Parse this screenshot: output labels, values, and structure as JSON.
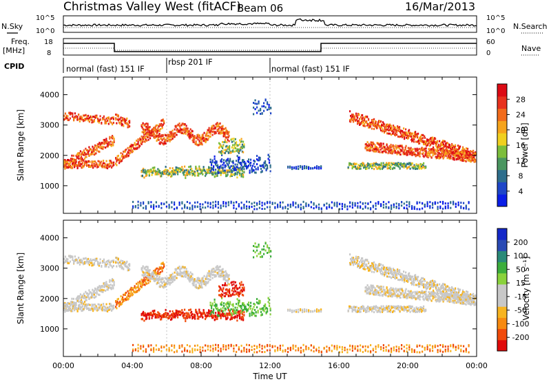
{
  "header": {
    "title": "Christmas Valley West (fitACF)",
    "beam": "Beam 06",
    "date": "16/Mar/2013"
  },
  "top_panels": {
    "nsky_label": "N.Sky",
    "nsky_ticks": [
      "10^5",
      "10^0"
    ],
    "nsky_right_ticks": [
      "10^5",
      "10^0"
    ],
    "nsearch_label": "N.Search",
    "freq_label_line1": "Freq.",
    "freq_label_line2": "[MHz]",
    "freq_ticks": [
      "18",
      "8"
    ],
    "nave_ticks": [
      "60",
      "0"
    ],
    "nave_label": "Nave",
    "cpid_label": "CPID",
    "cpid_segments": [
      {
        "label": "normal (fast) 151 IF",
        "start_hour": 0,
        "end_hour": 6
      },
      {
        "label": "rbsp 201 IF",
        "start_hour": 6,
        "end_hour": 12
      },
      {
        "label": "normal (fast) 151 IF",
        "start_hour": 12,
        "end_hour": 24
      }
    ]
  },
  "chart_data": [
    {
      "type": "heatmap",
      "name": "Power",
      "ylabel": "Slant Range [km]",
      "yticks": [
        1000,
        2000,
        3000,
        4000
      ],
      "ylim": [
        90,
        4580
      ],
      "xlim": [
        0,
        24
      ],
      "colorbar_label": "Power [dB]",
      "colorbar_ticks": [
        "4",
        "8",
        "12",
        "16",
        "20",
        "24",
        "28"
      ],
      "colorbar_colors": [
        "#0a1ee6",
        "#1e46c8",
        "#2e6e8c",
        "#4a9660",
        "#7cbe3c",
        "#f0d020",
        "#f6a41c",
        "#f26c1c",
        "#e8321e",
        "#dc0a14"
      ]
    },
    {
      "type": "heatmap",
      "name": "Velocity",
      "ylabel": "Slant Range [km]",
      "yticks": [
        1000,
        2000,
        3000,
        4000
      ],
      "ylim": [
        90,
        4580
      ],
      "xlim": [
        0,
        24
      ],
      "xlabel": "Time UT",
      "xticks": [
        "00:00",
        "04:00",
        "08:00",
        "12:00",
        "16:00",
        "20:00",
        "00:00"
      ],
      "colorbar_label": "Velocity [m s⁻¹]",
      "colorbar_ticks": [
        "-200",
        "-100",
        "-50",
        "-15",
        "15",
        "50",
        "100",
        "200"
      ],
      "colorbar_colors": [
        "#e00a0a",
        "#f04a0a",
        "#f78a10",
        "#f7b420",
        "#c8c8c8",
        "#c8c8c8",
        "#8ad23c",
        "#3cae3c",
        "#2a8a78",
        "#2a4ab4",
        "#1428c8"
      ]
    }
  ]
}
